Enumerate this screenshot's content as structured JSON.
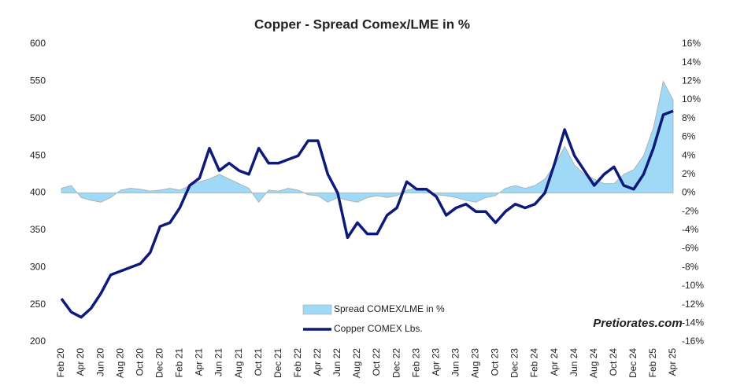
{
  "chart_data": {
    "type": "line",
    "title": "Copper - Spread Comex/LME in %",
    "watermark": "Pretiorates.com",
    "categories": [
      "Feb 20",
      null,
      "Apr 20",
      null,
      "Jun 20",
      null,
      "Aug 20",
      null,
      "Oct 20",
      null,
      "Dec 20",
      null,
      "Feb 21",
      null,
      "Apr 21",
      null,
      "Jun 21",
      null,
      "Aug 21",
      null,
      "Oct 21",
      null,
      "Dec 21",
      null,
      "Feb 22",
      null,
      "Apr 22",
      null,
      "Jun 22",
      null,
      "Aug 22",
      null,
      "Oct 22",
      null,
      "Dec 22",
      null,
      "Feb 23",
      null,
      "Apr 23",
      null,
      "Jun 23",
      null,
      "Aug 23",
      null,
      "Oct 23",
      null,
      "Dec 23",
      null,
      "Feb 24",
      null,
      "Apr 24",
      null,
      "Jun 24",
      null,
      "Aug 24",
      null,
      "Oct 24",
      null,
      "Dec 24",
      null,
      "Feb 25",
      null,
      "Apr 25"
    ],
    "series": [
      {
        "name": "Spread COMEX/LME in %",
        "type": "area",
        "axis": "y2",
        "color": "#9fd9f5",
        "values": [
          0.5,
          0.8,
          -0.5,
          -0.8,
          -1,
          -0.5,
          0.3,
          0.5,
          0.4,
          0.2,
          0.3,
          0.5,
          0.3,
          0.8,
          1.2,
          1.5,
          2,
          1.5,
          1,
          0.5,
          -1,
          0.3,
          0.2,
          0.5,
          0.3,
          -0.2,
          -0.3,
          -1,
          -0.5,
          -0.8,
          -1,
          -0.5,
          -0.3,
          -0.5,
          -0.3,
          0.3,
          0.5,
          0.3,
          -0.2,
          -0.3,
          -0.5,
          -0.8,
          -1,
          -0.5,
          -0.3,
          0.5,
          0.8,
          0.5,
          0.8,
          1.5,
          3,
          5,
          3,
          2,
          1.5,
          1,
          1,
          2,
          2.5,
          4,
          7,
          12,
          10
        ]
      },
      {
        "name": "Copper COMEX Lbs.",
        "type": "line",
        "color": "#0d1a7a",
        "values": [
          258,
          240,
          233,
          245,
          265,
          290,
          295,
          300,
          305,
          320,
          355,
          360,
          380,
          410,
          420,
          460,
          430,
          440,
          430,
          425,
          460,
          440,
          440,
          445,
          450,
          470,
          470,
          425,
          400,
          340,
          360,
          345,
          345,
          370,
          380,
          415,
          405,
          405,
          395,
          370,
          380,
          385,
          375,
          375,
          360,
          375,
          385,
          380,
          385,
          400,
          440,
          485,
          450,
          430,
          410,
          425,
          435,
          410,
          405,
          425,
          460,
          505,
          510
        ]
      }
    ],
    "ylim": [
      200,
      600
    ],
    "yticks": [
      200,
      250,
      300,
      350,
      400,
      450,
      500,
      550,
      600
    ],
    "y2lim": [
      -16,
      16
    ],
    "y2ticks": [
      {
        "value": -16,
        "label": "-16%"
      },
      {
        "value": -14,
        "label": "-14%"
      },
      {
        "value": -12,
        "label": "-12%"
      },
      {
        "value": -10,
        "label": "-10%"
      },
      {
        "value": -8,
        "label": "-8%"
      },
      {
        "value": -6,
        "label": "-6%"
      },
      {
        "value": -4,
        "label": "-4%"
      },
      {
        "value": -2,
        "label": "-2%"
      },
      {
        "value": 0,
        "label": "0%"
      },
      {
        "value": 2,
        "label": "2%"
      },
      {
        "value": 4,
        "label": "4%"
      },
      {
        "value": 6,
        "label": "6%"
      },
      {
        "value": 8,
        "label": "8%"
      },
      {
        "value": 10,
        "label": "10%"
      },
      {
        "value": 12,
        "label": "12%"
      },
      {
        "value": 14,
        "label": "14%"
      },
      {
        "value": 16,
        "label": "16%"
      }
    ]
  }
}
